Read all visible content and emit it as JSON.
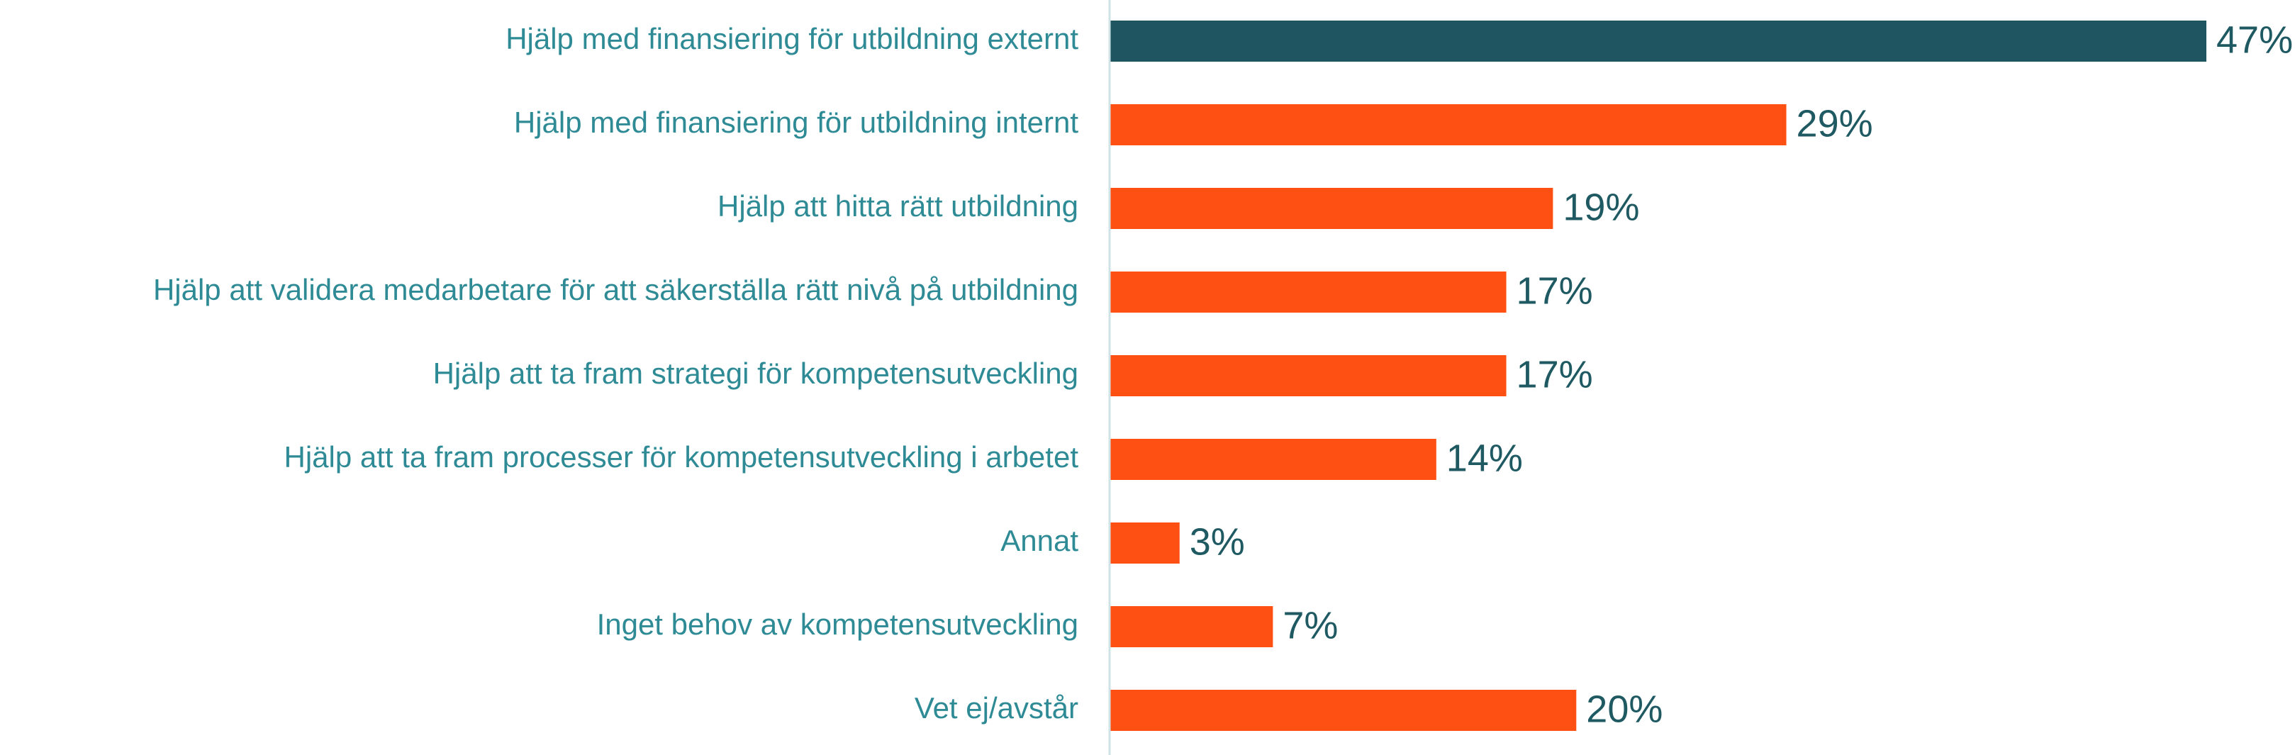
{
  "chart_data": {
    "type": "bar",
    "orientation": "horizontal",
    "categories": [
      "Hjälp med finansiering för utbildning externt",
      "Hjälp med finansiering för utbildning internt",
      "Hjälp att hitta rätt utbildning",
      "Hjälp att validera medarbetare för att säkerställa rätt nivå på utbildning",
      "Hjälp att ta fram strategi för kompetensutveckling",
      "Hjälp att ta fram processer för kompetensutveckling i arbetet",
      "Annat",
      "Inget behov av kompetensutveckling",
      "Vet ej/avstår"
    ],
    "values": [
      47,
      29,
      19,
      17,
      17,
      14,
      3,
      7,
      20
    ],
    "value_labels": [
      "47%",
      "29%",
      "19%",
      "17%",
      "17%",
      "14%",
      "3%",
      "7%",
      "20%"
    ],
    "bar_colors": [
      "#1F5561",
      "#FF5014",
      "#FF5014",
      "#FF5014",
      "#FF5014",
      "#FF5014",
      "#FF5014",
      "#FF5014",
      "#FF5014"
    ],
    "label_color": "#2E8B95",
    "value_color": "#1F5A63",
    "axis_color": "#CFE3E6",
    "xlim": [
      0,
      47
    ],
    "grid": false,
    "legend": false
  }
}
